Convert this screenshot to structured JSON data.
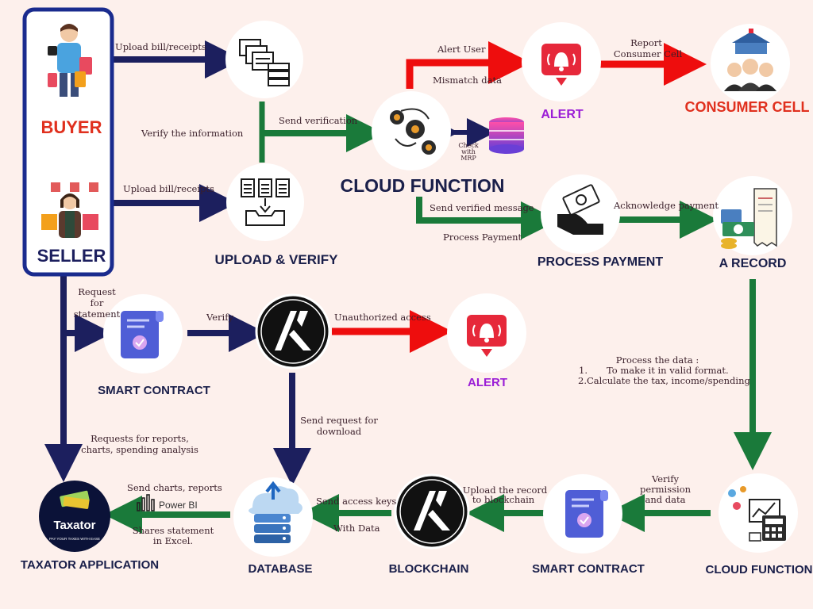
{
  "nodes": {
    "buyer": "BUYER",
    "seller": "SELLER",
    "upload_verify": "UPLOAD & VERIFY",
    "cloud_function_top": "CLOUD FUNCTION",
    "alert_top": "ALERT",
    "consumer_cell": "CONSUMER CELL",
    "process_payment": "PROCESS PAYMENT",
    "a_record": "A RECORD",
    "smart_contract_left": "SMART CONTRACT",
    "alert_mid": "ALERT",
    "taxator_application": "TAXATOR APPLICATION",
    "database": "DATABASE",
    "blockchain": "BLOCKCHAIN",
    "smart_contract_bottom": "SMART CONTRACT",
    "cloud_function_bottom": "CLOUD FUNCTION"
  },
  "edges": {
    "upload_buyer": "Upload bill/receipts",
    "upload_seller": "Upload bill/receipts",
    "verify_info": "Verify the information",
    "send_verification": "Send verification",
    "check_with": "Check",
    "check_with2": "with",
    "check_mrp": "MRP",
    "alert_user": "Alert User",
    "mismatch": "Mismatch data",
    "report_1": "Report",
    "report_2": "Consumer Cell",
    "send_verified": "Send verified message",
    "process_payment": "Process Payment",
    "ack_payment": "Acknowledge payment",
    "request_1": "Request",
    "request_2": "for",
    "request_3": "statement",
    "verify": "Verify",
    "unauthorized": "Unauthorized access",
    "process_data_title": "Process the data :",
    "process_data_1_num": "1.",
    "process_data_1": "To make it in valid format.",
    "process_data_2": "2.Calculate the tax, income/spending",
    "send_request_1": "Send request for",
    "send_request_2": "download",
    "requests_reports_1": "Requests for reports,",
    "requests_reports_2": "charts, spending analysis",
    "verify_perm_1": "Verify",
    "verify_perm_2": "permission",
    "verify_perm_3": "and data",
    "upload_record_1": "Upload the record",
    "upload_record_2": "to blockchain",
    "send_access": "Send access keys",
    "with_data": "With Data",
    "send_charts": "Send charts, reports",
    "power_bi": "Power BI",
    "shares_1": "Shares statement",
    "shares_2": "in Excel."
  },
  "logos": {
    "taxator_name": "Taxator",
    "taxator_tagline": "PAY YOUR TAXES WITH EASE"
  },
  "colors": {
    "navy": "#1c1f5e",
    "green": "#1a7a3a",
    "red": "#ee0d0d",
    "purple": "#9b1dd6",
    "consumer_red": "#e0301e"
  }
}
